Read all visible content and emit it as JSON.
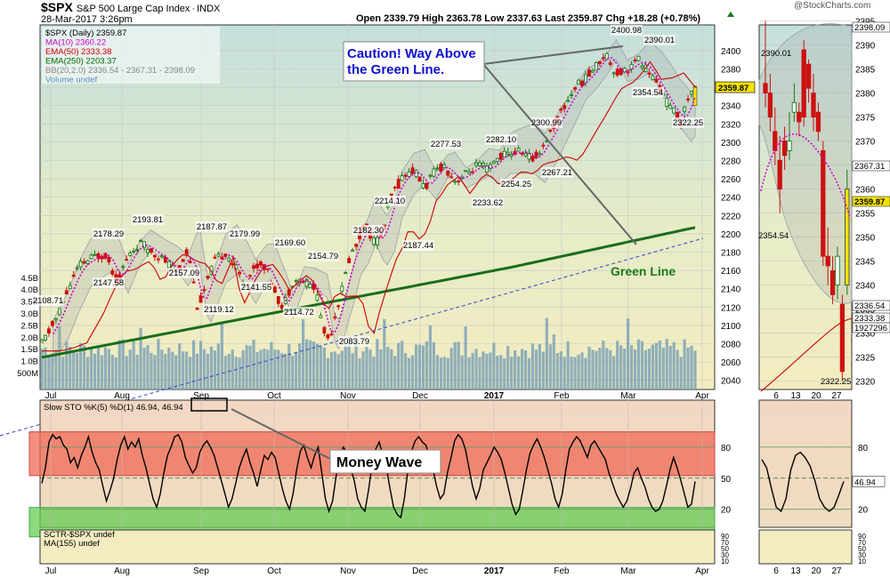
{
  "header": {
    "symbol": "$SPX",
    "name": "S&P 500 Large Cap Index",
    "exchange": "INDX",
    "datetime": "28-Mar-2017 3:26pm",
    "quote": "Open 2339.79   High 2363.78   Low 2337.63   Last 2359.87   Chg +18.28 (+0.78%)",
    "watermark": "@StockCharts.com"
  },
  "legend": [
    {
      "text": "$SPX (Daily) 2359.87",
      "color": "#000000"
    },
    {
      "text": "MA(10) 2360.22",
      "color": "#cc00cc"
    },
    {
      "text": "EMA(50) 2333.38",
      "color": "#cc0000"
    },
    {
      "text": "EMA(250) 2203.37",
      "color": "#006600"
    },
    {
      "text": "BB(20,2.0) 2336.54 - 2367.31 - 2398.09",
      "color": "#888888"
    },
    {
      "text": "Volume undef",
      "color": "#5a8fbf"
    }
  ],
  "annotations": {
    "caution_line1": "Caution! Way Above",
    "caution_line2": "the Green Line.",
    "green_line": "Green Line",
    "money_wave": "Money Wave"
  },
  "lower_panels": {
    "sto_legend": "Slow STO %K(5) %D(1) 46.94, 46.94",
    "sctr_legend": "SCTR-$SPX undef",
    "ma155_legend": "MA(155) undef"
  },
  "colors": {
    "up": "#1a7a1a",
    "down": "#cc1111",
    "ma10": "#cc00cc",
    "ema50": "#cc0000",
    "ema250": "#1a6e1a",
    "bb": "#9aa0a8",
    "volume": "#6f9bb5",
    "trend": "#3344cc",
    "caution": "#1010cc",
    "green_label": "#1a7a1a",
    "overbought_band": "#ef6a55",
    "oversold_band": "#66cc55",
    "current": "#f5e300"
  },
  "chart_data": {
    "type": "candlestick",
    "y_axis": {
      "ticks": [
        2040,
        2060,
        2080,
        2100,
        2120,
        2140,
        2160,
        2180,
        2200,
        2220,
        2240,
        2260,
        2280,
        2300,
        2320,
        2340,
        2360,
        2380,
        2400
      ]
    },
    "volume_axis": {
      "ticks": [
        "500M",
        "1.0B",
        "1.5B",
        "2.0B",
        "2.5B",
        "3.0B",
        "3.5B",
        "4.0B",
        "4.5B"
      ]
    },
    "x_ticks": [
      "Jul",
      "Aug",
      "Sep",
      "Oct",
      "Nov",
      "Dec",
      "2017",
      "Feb",
      "Mar",
      "Apr"
    ],
    "price_labels": [
      "2108.71",
      "2178.29",
      "2147.58",
      "2193.81",
      "2157.09",
      "2119.12",
      "2187.87",
      "2179.99",
      "2141.55",
      "2169.60",
      "2114.72",
      "2154.79",
      "2083.79",
      "2182.30",
      "2214.10",
      "2187.44",
      "2277.53",
      "2233.62",
      "2282.10",
      "2254.25",
      "2300.99",
      "2267.21",
      "2400.98",
      "2354.54",
      "2390.01",
      "2322.25"
    ],
    "last_price": "2359.87",
    "right_axis_tags": [
      "2398.09",
      "2336.54",
      "2333.38",
      "2367.31",
      "1927296"
    ],
    "zoom_axis": {
      "ticks": [
        2320,
        2325,
        2330,
        2335,
        2340,
        2345,
        2350,
        2355,
        2360,
        2365,
        2370,
        2375,
        2380,
        2385,
        2390,
        2395
      ],
      "labels": [
        "2390.01",
        "2354.54",
        "2367.31",
        "2359.87",
        "2336.54",
        "2333.38",
        "1927296",
        "2322.25"
      ],
      "x_ticks": [
        "6",
        "13",
        "20",
        "27"
      ]
    },
    "stochastic": {
      "ticks": [
        "80",
        "50",
        "20"
      ],
      "value": "46.94",
      "k": [
        45,
        60,
        85,
        92,
        88,
        90,
        82,
        78,
        65,
        70,
        60,
        72,
        80,
        90,
        75,
        65,
        58,
        42,
        28,
        38,
        50,
        68,
        82,
        90,
        78,
        85,
        80,
        88,
        72,
        60,
        45,
        30,
        22,
        35,
        55,
        72,
        80,
        90,
        92,
        85,
        70,
        62,
        55,
        60,
        75,
        82,
        86,
        80,
        72,
        60,
        48,
        35,
        22,
        30,
        45,
        60,
        70,
        78,
        65,
        55,
        42,
        58,
        72,
        68,
        75,
        70,
        55,
        40,
        28,
        20,
        35,
        58,
        76,
        82,
        70,
        60,
        72,
        80,
        55,
        30,
        18,
        28,
        52,
        72,
        80,
        75,
        60,
        48,
        30,
        22,
        18,
        38,
        62,
        78,
        85,
        72,
        60,
        40,
        22,
        15,
        12,
        30,
        58,
        76,
        86,
        90,
        85,
        82,
        70,
        58,
        42,
        30,
        35,
        55,
        70,
        86,
        92,
        88,
        78,
        60,
        42,
        30,
        40,
        58,
        65,
        72,
        80,
        75,
        68,
        55,
        40,
        25,
        15,
        20,
        38,
        58,
        74,
        82,
        88,
        80,
        70,
        58,
        45,
        30,
        22,
        35,
        58,
        78,
        85,
        90,
        86,
        78,
        70,
        82,
        86,
        80,
        74,
        68,
        55,
        45,
        35,
        28,
        22,
        28,
        40,
        55,
        60,
        50,
        42,
        30,
        22,
        18,
        20,
        28,
        42,
        58,
        70,
        60,
        48,
        35,
        22,
        25,
        46.94
      ],
      "zoom_k": [
        68,
        60,
        40,
        22,
        18,
        30,
        58,
        72,
        75,
        70,
        62,
        48,
        30,
        22,
        18,
        22,
        34,
        46.94
      ],
      "zoom_x_ticks": [
        "6",
        "13",
        "20",
        "27"
      ],
      "zoom_ticks": [
        "80",
        "50",
        "20"
      ]
    },
    "sctr_ticks": [
      "90",
      "70",
      "50",
      "30",
      "10"
    ]
  }
}
